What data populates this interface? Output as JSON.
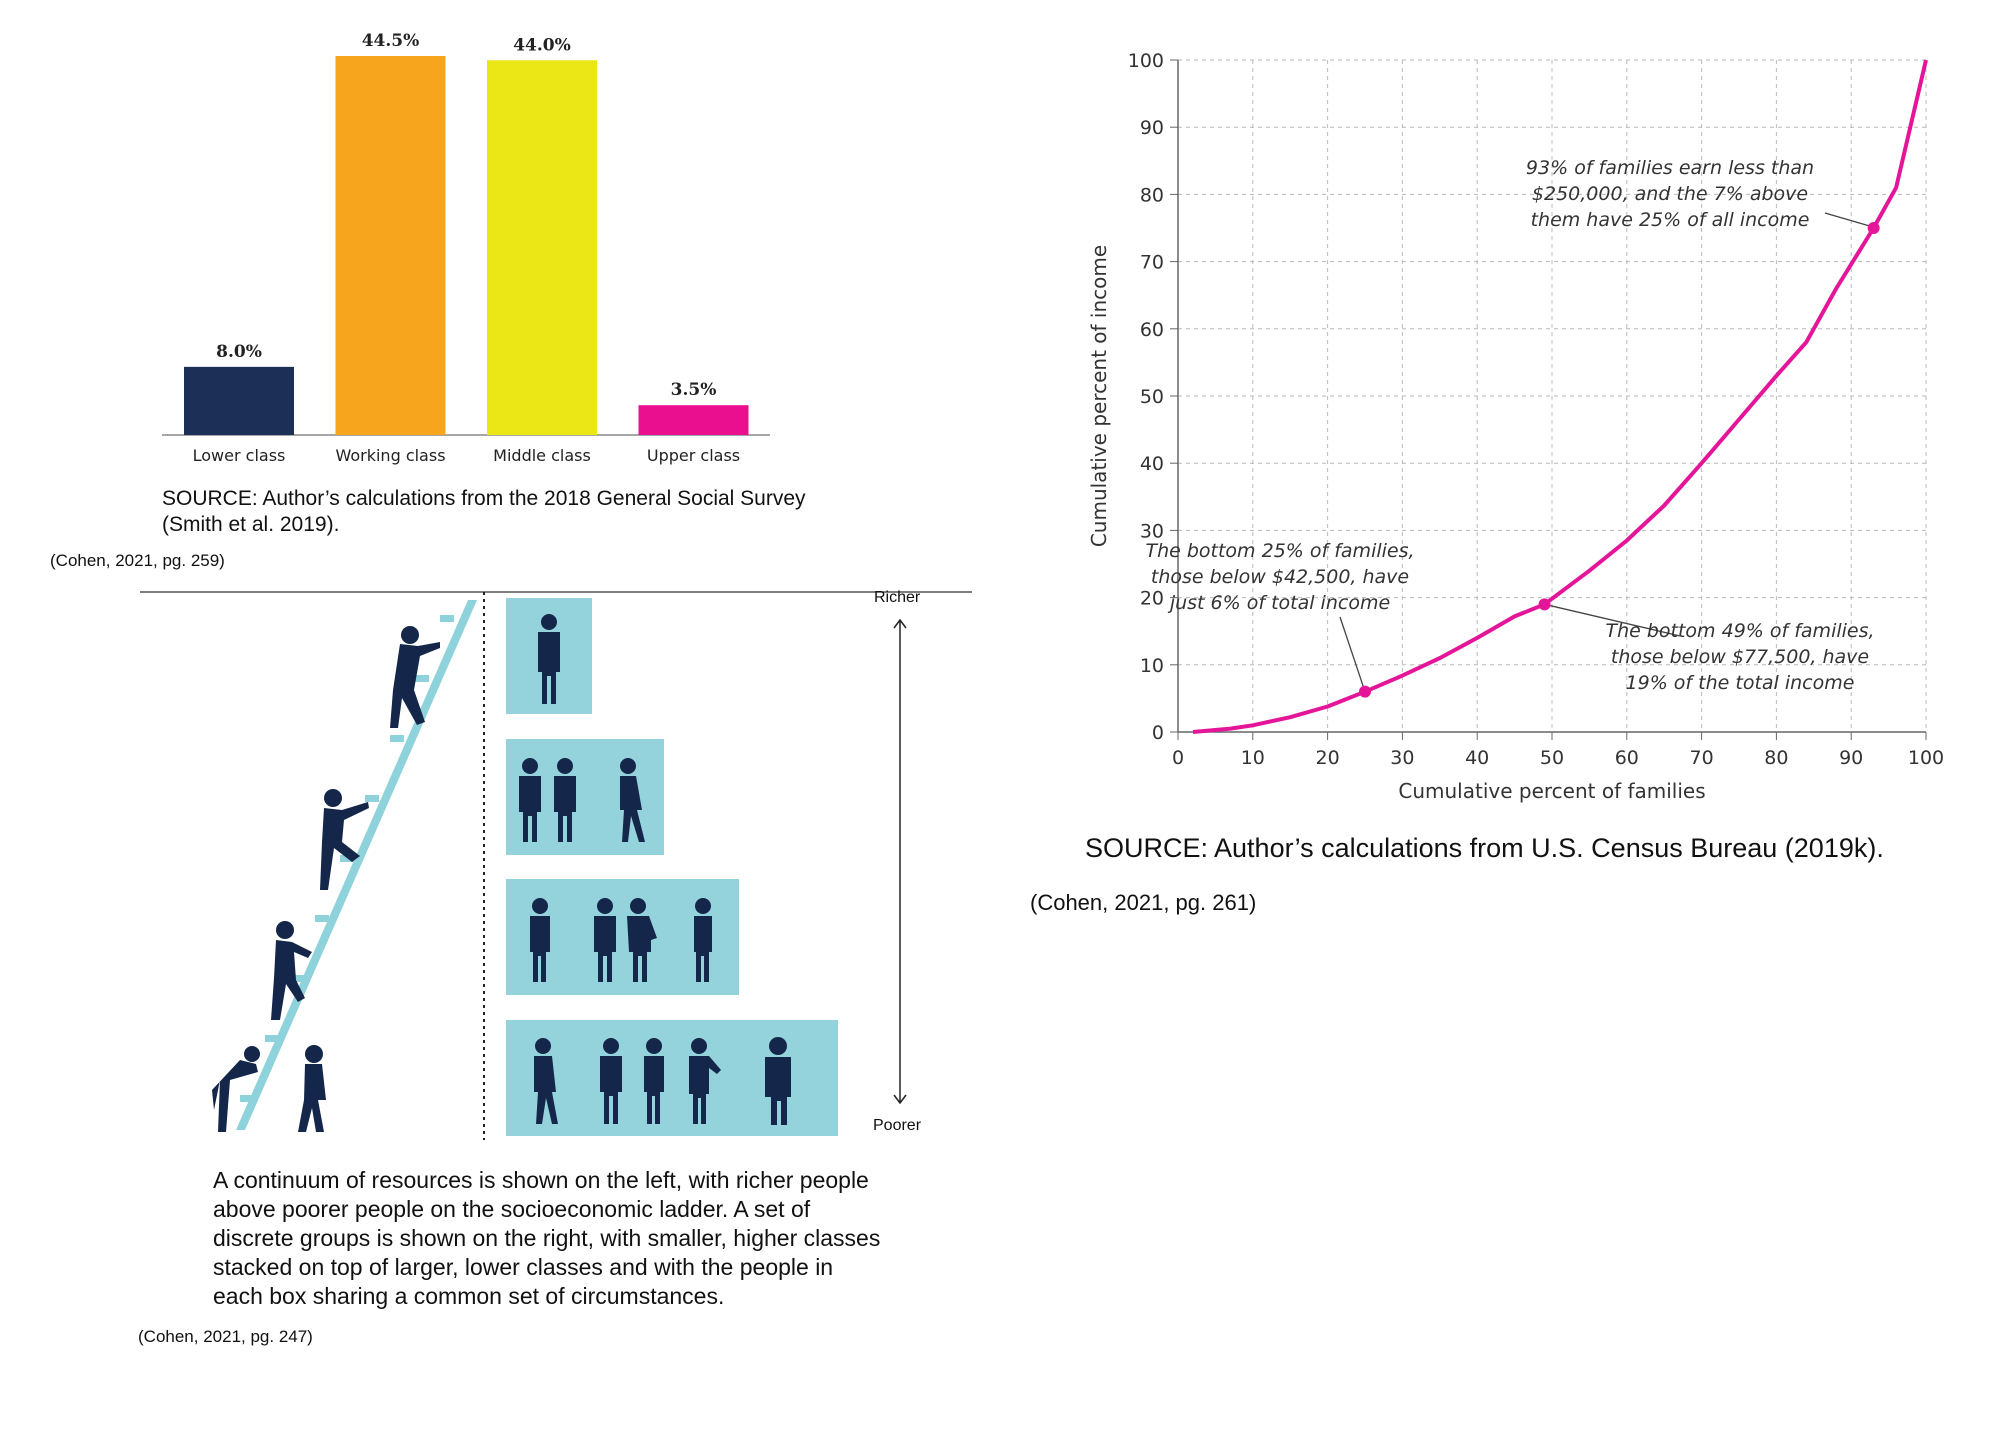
{
  "colors": {
    "bar_lower": "#1b2f57",
    "bar_working": "#f6a51d",
    "bar_middle": "#ebe616",
    "bar_upper": "#ea0f8f",
    "curve": "#e5159a",
    "box": "#95d3dc",
    "figure": "#14274a",
    "ladder": "#8ed2db"
  },
  "bar_chart": {
    "source_line1": "SOURCE: Author’s calculations from the 2018 General Social Survey",
    "source_line2": "(Smith et al. 2019).",
    "citation": "(Cohen, 2021, pg. 259)"
  },
  "ladder_figure": {
    "richer_label": "Richer",
    "poorer_label": "Poorer",
    "caption_lines": [
      "A continuum of resources is shown on the left, with richer people",
      "above poorer people on the socioeconomic ladder. A set of",
      "discrete groups is shown on the right, with smaller, higher classes",
      "stacked on top of larger, lower classes and with the people in",
      "each box sharing a common set of circumstances."
    ],
    "citation": "(Cohen, 2021, pg. 247)"
  },
  "lorenz_chart": {
    "source": "SOURCE: Author’s calculations from U.S. Census Bureau (2019k).",
    "citation": "(Cohen, 2021, pg. 261)"
  },
  "chart_data": [
    {
      "type": "bar",
      "categories": [
        "Lower class",
        "Working class",
        "Middle class",
        "Upper class"
      ],
      "values": [
        8.0,
        44.5,
        44.0,
        3.5
      ],
      "value_labels": [
        "8.0%",
        "44.5%",
        "44.0%",
        "3.5%"
      ],
      "ylim": [
        0,
        44.5
      ],
      "grid": false
    },
    {
      "type": "line",
      "xlabel": "Cumulative percent of families",
      "ylabel": "Cumulative percent of income",
      "xlim": [
        0,
        100
      ],
      "ylim": [
        0,
        100
      ],
      "xticks": [
        0,
        10,
        20,
        30,
        40,
        50,
        60,
        70,
        80,
        90,
        100
      ],
      "yticks": [
        0,
        10,
        20,
        30,
        40,
        50,
        60,
        70,
        80,
        90,
        100
      ],
      "grid": true,
      "series": [
        {
          "x": [
            2,
            7,
            10,
            15,
            20,
            25,
            30,
            35,
            40,
            45,
            49,
            55,
            60,
            65,
            70,
            75,
            80,
            84,
            88,
            93,
            96,
            100
          ],
          "y": [
            0,
            0.5,
            1,
            2.2,
            3.8,
            6,
            8.4,
            11,
            14,
            17.2,
            19,
            24,
            28.5,
            33.7,
            40,
            46.5,
            53,
            58,
            66,
            75,
            81,
            100
          ]
        }
      ],
      "points": [
        {
          "x": 25,
          "y": 6
        },
        {
          "x": 49,
          "y": 19
        },
        {
          "x": 93,
          "y": 75
        }
      ],
      "annotations": [
        {
          "lines": [
            "The bottom 25% of families,",
            "those below $42,500, have",
            "just 6% of total income"
          ]
        },
        {
          "lines": [
            "The bottom 49% of families,",
            "those below $77,500, have",
            "19% of the total income"
          ]
        },
        {
          "lines": [
            "93% of families earn less than",
            "$250,000, and the 7% above",
            "them have 25% of all income"
          ]
        }
      ]
    }
  ]
}
